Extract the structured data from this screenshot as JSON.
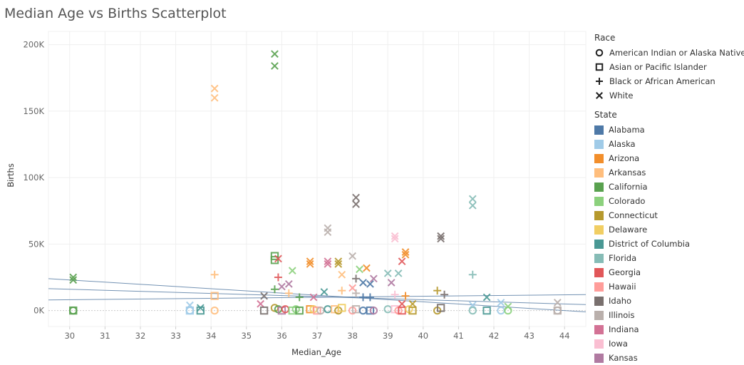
{
  "title": "Median Age vs Births Scatterplot",
  "chart_data": {
    "type": "scatter",
    "title": "Median Age vs Births Scatterplot",
    "xlabel": "Median_Age",
    "ylabel": "Births",
    "xlim": [
      29.4,
      44.6
    ],
    "ylim": [
      -12000,
      210000
    ],
    "x_ticks": [
      30,
      31,
      32,
      33,
      34,
      35,
      36,
      37,
      38,
      39,
      40,
      41,
      42,
      43,
      44
    ],
    "y_ticks": [
      {
        "value": 0,
        "label": "0K"
      },
      {
        "value": 50000,
        "label": "50K"
      },
      {
        "value": 100000,
        "label": "100K"
      },
      {
        "value": 150000,
        "label": "150K"
      },
      {
        "value": 200000,
        "label": "200K"
      }
    ],
    "grid": true,
    "legend_position": "right",
    "trend_lines": [
      {
        "x": [
          29.4,
          44.6
        ],
        "y": [
          16500,
          4500
        ]
      },
      {
        "x": [
          29.4,
          44.6
        ],
        "y": [
          24000,
          -1000
        ]
      },
      {
        "x": [
          29.4,
          44.6
        ],
        "y": [
          8000,
          12000
        ]
      }
    ],
    "race_legend": {
      "title": "Race",
      "items": [
        {
          "name": "American Indian or Alaska Native",
          "shape": "circle"
        },
        {
          "name": "Asian or Pacific Islander",
          "shape": "square"
        },
        {
          "name": "Black or African American",
          "shape": "plus"
        },
        {
          "name": "White",
          "shape": "x"
        }
      ]
    },
    "state_legend": {
      "title": "State",
      "items": [
        {
          "name": "Alabama",
          "color": "#4e79a7"
        },
        {
          "name": "Alaska",
          "color": "#a0cbe8"
        },
        {
          "name": "Arizona",
          "color": "#f28e2b"
        },
        {
          "name": "Arkansas",
          "color": "#ffbe7d"
        },
        {
          "name": "California",
          "color": "#59a14f"
        },
        {
          "name": "Colorado",
          "color": "#8cd17d"
        },
        {
          "name": "Connecticut",
          "color": "#b6992d"
        },
        {
          "name": "Delaware",
          "color": "#f1ce63"
        },
        {
          "name": "District of Columbia",
          "color": "#499894"
        },
        {
          "name": "Florida",
          "color": "#86bcb6"
        },
        {
          "name": "Georgia",
          "color": "#e15759"
        },
        {
          "name": "Hawaii",
          "color": "#ff9d9a"
        },
        {
          "name": "Idaho",
          "color": "#79706e"
        },
        {
          "name": "Illinois",
          "color": "#bab0ac"
        },
        {
          "name": "Indiana",
          "color": "#d37295"
        },
        {
          "name": "Iowa",
          "color": "#fabfd2"
        },
        {
          "name": "Kansas",
          "color": "#b07aa1"
        }
      ]
    },
    "points": [
      {
        "state": "California",
        "race": "x",
        "x": 35.8,
        "y": 193000
      },
      {
        "state": "California",
        "race": "x",
        "x": 35.8,
        "y": 184000
      },
      {
        "state": "Arkansas",
        "race": "x",
        "x": 34.1,
        "y": 167000
      },
      {
        "state": "Arkansas",
        "race": "x",
        "x": 34.1,
        "y": 160000
      },
      {
        "state": "Florida",
        "race": "x",
        "x": 41.4,
        "y": 84000
      },
      {
        "state": "Florida",
        "race": "x",
        "x": 41.4,
        "y": 79000
      },
      {
        "state": "Idaho",
        "race": "x",
        "x": 38.1,
        "y": 85000
      },
      {
        "state": "Idaho",
        "race": "x",
        "x": 38.1,
        "y": 80000
      },
      {
        "state": "Illinois",
        "race": "x",
        "x": 37.3,
        "y": 62000
      },
      {
        "state": "Illinois",
        "race": "x",
        "x": 37.3,
        "y": 59000
      },
      {
        "state": "Iowa",
        "race": "x",
        "x": 39.2,
        "y": 56000
      },
      {
        "state": "Iowa",
        "race": "x",
        "x": 39.2,
        "y": 54000
      },
      {
        "state": "Idaho",
        "race": "x",
        "x": 40.5,
        "y": 56000
      },
      {
        "state": "Idaho",
        "race": "x",
        "x": 40.5,
        "y": 54000
      },
      {
        "state": "Arizona",
        "race": "x",
        "x": 39.5,
        "y": 44000
      },
      {
        "state": "Arizona",
        "race": "x",
        "x": 39.5,
        "y": 42000
      },
      {
        "state": "Illinois",
        "race": "x",
        "x": 38.0,
        "y": 41000
      },
      {
        "state": "California",
        "race": "square",
        "x": 35.8,
        "y": 41000
      },
      {
        "state": "California",
        "race": "square",
        "x": 35.8,
        "y": 38000
      },
      {
        "state": "Georgia",
        "race": "x",
        "x": 35.9,
        "y": 39000
      },
      {
        "state": "Arizona",
        "race": "x",
        "x": 36.8,
        "y": 37000
      },
      {
        "state": "Arizona",
        "race": "x",
        "x": 36.8,
        "y": 35000
      },
      {
        "state": "Indiana",
        "race": "x",
        "x": 37.3,
        "y": 37000
      },
      {
        "state": "Indiana",
        "race": "x",
        "x": 37.3,
        "y": 35000
      },
      {
        "state": "Connecticut",
        "race": "x",
        "x": 37.6,
        "y": 37000
      },
      {
        "state": "Connecticut",
        "race": "x",
        "x": 37.6,
        "y": 35000
      },
      {
        "state": "Georgia",
        "race": "x",
        "x": 39.4,
        "y": 37000
      },
      {
        "state": "Arizona",
        "race": "x",
        "x": 38.4,
        "y": 32000
      },
      {
        "state": "Colorado",
        "race": "x",
        "x": 38.2,
        "y": 31000
      },
      {
        "state": "Colorado",
        "race": "x",
        "x": 36.3,
        "y": 30000
      },
      {
        "state": "Florida",
        "race": "x",
        "x": 39.0,
        "y": 28000
      },
      {
        "state": "Florida",
        "race": "x",
        "x": 39.3,
        "y": 28000
      },
      {
        "state": "Arkansas",
        "race": "x",
        "x": 37.7,
        "y": 27000
      },
      {
        "state": "Arkansas",
        "race": "plus",
        "x": 34.1,
        "y": 27000
      },
      {
        "state": "Florida",
        "race": "plus",
        "x": 41.4,
        "y": 27000
      },
      {
        "state": "California",
        "race": "x",
        "x": 30.1,
        "y": 25000
      },
      {
        "state": "California",
        "race": "x",
        "x": 30.1,
        "y": 23000
      },
      {
        "state": "Georgia",
        "race": "plus",
        "x": 35.9,
        "y": 25000
      },
      {
        "state": "Idaho",
        "race": "plus",
        "x": 38.1,
        "y": 24000
      },
      {
        "state": "Alabama",
        "race": "x",
        "x": 38.3,
        "y": 21000
      },
      {
        "state": "Alabama",
        "race": "x",
        "x": 38.5,
        "y": 20000
      },
      {
        "state": "Kansas",
        "race": "x",
        "x": 36.2,
        "y": 20000
      },
      {
        "state": "Kansas",
        "race": "x",
        "x": 36.0,
        "y": 18000
      },
      {
        "state": "Kansas",
        "race": "x",
        "x": 39.1,
        "y": 21000
      },
      {
        "state": "Kansas",
        "race": "x",
        "x": 38.6,
        "y": 24000
      },
      {
        "state": "Hawaii",
        "race": "x",
        "x": 38.0,
        "y": 17000
      },
      {
        "state": "California",
        "race": "plus",
        "x": 35.8,
        "y": 16000
      },
      {
        "state": "Arkansas",
        "race": "plus",
        "x": 37.7,
        "y": 15000
      },
      {
        "state": "District of Columbia",
        "race": "x",
        "x": 37.2,
        "y": 14000
      },
      {
        "state": "Connecticut",
        "race": "plus",
        "x": 40.4,
        "y": 15000
      },
      {
        "state": "Idaho",
        "race": "plus",
        "x": 40.6,
        "y": 12000
      },
      {
        "state": "Idaho",
        "race": "x",
        "x": 35.5,
        "y": 11000
      },
      {
        "state": "Indiana",
        "race": "x",
        "x": 36.9,
        "y": 10000
      },
      {
        "state": "Illinois",
        "race": "plus",
        "x": 38.1,
        "y": 13000
      },
      {
        "state": "Alabama",
        "race": "plus",
        "x": 38.3,
        "y": 10000
      },
      {
        "state": "Alabama",
        "race": "plus",
        "x": 38.5,
        "y": 10000
      },
      {
        "state": "District of Columbia",
        "race": "x",
        "x": 41.8,
        "y": 10000
      },
      {
        "state": "California",
        "race": "plus",
        "x": 36.5,
        "y": 10000
      },
      {
        "state": "Iowa",
        "race": "plus",
        "x": 39.2,
        "y": 12000
      },
      {
        "state": "Arizona",
        "race": "plus",
        "x": 39.5,
        "y": 11000
      },
      {
        "state": "Arkansas",
        "race": "plus",
        "x": 36.2,
        "y": 13000
      },
      {
        "state": "Arkansas",
        "race": "square",
        "x": 34.1,
        "y": 11000
      },
      {
        "state": "Alaska",
        "race": "x",
        "x": 33.4,
        "y": 4000
      },
      {
        "state": "Alaska",
        "race": "x",
        "x": 42.2,
        "y": 6000
      },
      {
        "state": "Alaska",
        "race": "x",
        "x": 41.4,
        "y": 4000
      },
      {
        "state": "Illinois",
        "race": "x",
        "x": 43.8,
        "y": 6000
      },
      {
        "state": "District of Columbia",
        "race": "x",
        "x": 33.7,
        "y": 2000
      },
      {
        "state": "Connecticut",
        "race": "x",
        "x": 39.7,
        "y": 5000
      },
      {
        "state": "Georgia",
        "race": "x",
        "x": 39.4,
        "y": 5000
      },
      {
        "state": "Indiana",
        "race": "x",
        "x": 35.4,
        "y": 5000
      },
      {
        "state": "Colorado",
        "race": "x",
        "x": 42.4,
        "y": 3000
      },
      {
        "state": "California",
        "race": "square",
        "x": 30.1,
        "y": 0
      },
      {
        "state": "California",
        "race": "circle",
        "x": 30.1,
        "y": 0
      },
      {
        "state": "Alaska",
        "race": "square",
        "x": 33.4,
        "y": 0
      },
      {
        "state": "Alaska",
        "race": "circle",
        "x": 33.4,
        "y": 0
      },
      {
        "state": "District of Columbia",
        "race": "square",
        "x": 33.7,
        "y": 0
      },
      {
        "state": "Arkansas",
        "race": "circle",
        "x": 34.1,
        "y": 0
      },
      {
        "state": "Idaho",
        "race": "square",
        "x": 35.5,
        "y": 0
      },
      {
        "state": "Connecticut",
        "race": "circle",
        "x": 35.8,
        "y": 2000
      },
      {
        "state": "California",
        "race": "circle",
        "x": 35.9,
        "y": 1000
      },
      {
        "state": "Kansas",
        "race": "square",
        "x": 36.0,
        "y": 0
      },
      {
        "state": "Georgia",
        "race": "circle",
        "x": 36.1,
        "y": 1000
      },
      {
        "state": "Colorado",
        "race": "square",
        "x": 36.3,
        "y": 0
      },
      {
        "state": "Colorado",
        "race": "circle",
        "x": 36.4,
        "y": 1000
      },
      {
        "state": "California",
        "race": "square",
        "x": 36.5,
        "y": 0
      },
      {
        "state": "Arizona",
        "race": "square",
        "x": 36.8,
        "y": 1000
      },
      {
        "state": "Delaware",
        "race": "circle",
        "x": 36.9,
        "y": 1000
      },
      {
        "state": "Hawaii",
        "race": "square",
        "x": 37.0,
        "y": 0
      },
      {
        "state": "Illinois",
        "race": "circle",
        "x": 37.1,
        "y": 0
      },
      {
        "state": "District of Columbia",
        "race": "circle",
        "x": 37.3,
        "y": 1000
      },
      {
        "state": "Arkansas",
        "race": "square",
        "x": 37.5,
        "y": 1000
      },
      {
        "state": "Connecticut",
        "race": "circle",
        "x": 37.6,
        "y": 0
      },
      {
        "state": "Delaware",
        "race": "square",
        "x": 37.7,
        "y": 2000
      },
      {
        "state": "Hawaii",
        "race": "circle",
        "x": 38.0,
        "y": 0
      },
      {
        "state": "Illinois",
        "race": "square",
        "x": 38.1,
        "y": 1000
      },
      {
        "state": "Alabama",
        "race": "circle",
        "x": 38.3,
        "y": 0
      },
      {
        "state": "Alabama",
        "race": "square",
        "x": 38.5,
        "y": 0
      },
      {
        "state": "Kansas",
        "race": "circle",
        "x": 38.6,
        "y": 0
      },
      {
        "state": "Florida",
        "race": "circle",
        "x": 39.0,
        "y": 1000
      },
      {
        "state": "Iowa",
        "race": "square",
        "x": 39.2,
        "y": 1000
      },
      {
        "state": "Hawaii",
        "race": "circle",
        "x": 39.3,
        "y": 0
      },
      {
        "state": "Georgia",
        "race": "square",
        "x": 39.4,
        "y": 0
      },
      {
        "state": "Delaware",
        "race": "circle",
        "x": 39.6,
        "y": 1000
      },
      {
        "state": "Connecticut",
        "race": "square",
        "x": 39.7,
        "y": 0
      },
      {
        "state": "Connecticut",
        "race": "circle",
        "x": 40.4,
        "y": 0
      },
      {
        "state": "Idaho",
        "race": "square",
        "x": 40.5,
        "y": 2000
      },
      {
        "state": "Florida",
        "race": "circle",
        "x": 41.4,
        "y": 0
      },
      {
        "state": "District of Columbia",
        "race": "square",
        "x": 41.8,
        "y": 0
      },
      {
        "state": "Alaska",
        "race": "circle",
        "x": 42.2,
        "y": 0
      },
      {
        "state": "Colorado",
        "race": "circle",
        "x": 42.4,
        "y": 0
      },
      {
        "state": "Illinois",
        "race": "square",
        "x": 43.8,
        "y": 0
      },
      {
        "state": "Illinois",
        "race": "circle",
        "x": 43.8,
        "y": 0
      }
    ]
  }
}
